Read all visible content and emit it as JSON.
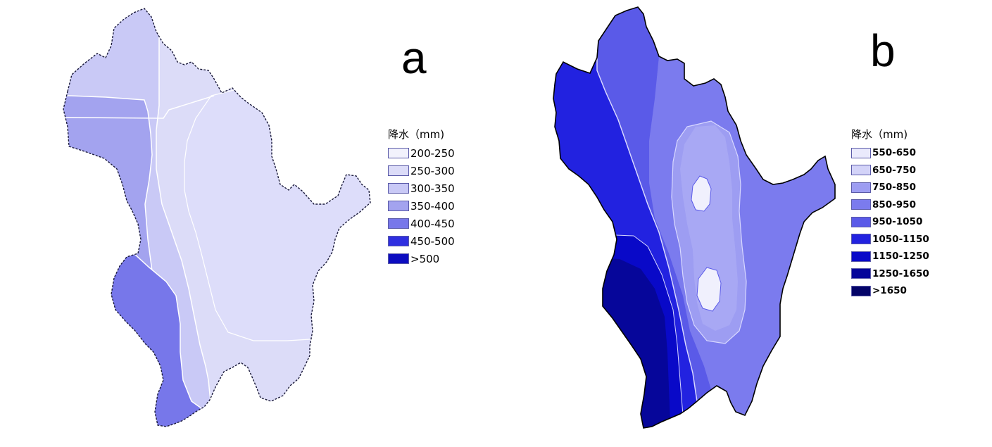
{
  "panels": [
    {
      "label": "a",
      "legend": {
        "title": "降水（mm)",
        "items": [
          {
            "range": "200-250",
            "color": "#f2f2fc"
          },
          {
            "range": "250-300",
            "color": "#dcdcf8"
          },
          {
            "range": "300-350",
            "color": "#c9c9f6"
          },
          {
            "range": "350-400",
            "color": "#a3a3ef"
          },
          {
            "range": "400-450",
            "color": "#7777ea"
          },
          {
            "range": "450-500",
            "color": "#2f2fe0"
          },
          {
            "range": ">500",
            "color": "#0d0dc0"
          }
        ]
      }
    },
    {
      "label": "b",
      "legend": {
        "title": "降水（mm)",
        "items": [
          {
            "range": "550-650",
            "color": "#eaeafc"
          },
          {
            "range": "650-750",
            "color": "#d3d3f8"
          },
          {
            "range": "750-850",
            "color": "#9d9df2"
          },
          {
            "range": "850-950",
            "color": "#7b7bee"
          },
          {
            "range": "950-1050",
            "color": "#5a5ae8"
          },
          {
            "range": "1050-1150",
            "color": "#2222e0"
          },
          {
            "range": "1150-1250",
            "color": "#0909c8"
          },
          {
            "range": "1250-1650",
            "color": "#06069a"
          },
          {
            "range": ">1650",
            "color": "#040468"
          }
        ]
      }
    }
  ]
}
